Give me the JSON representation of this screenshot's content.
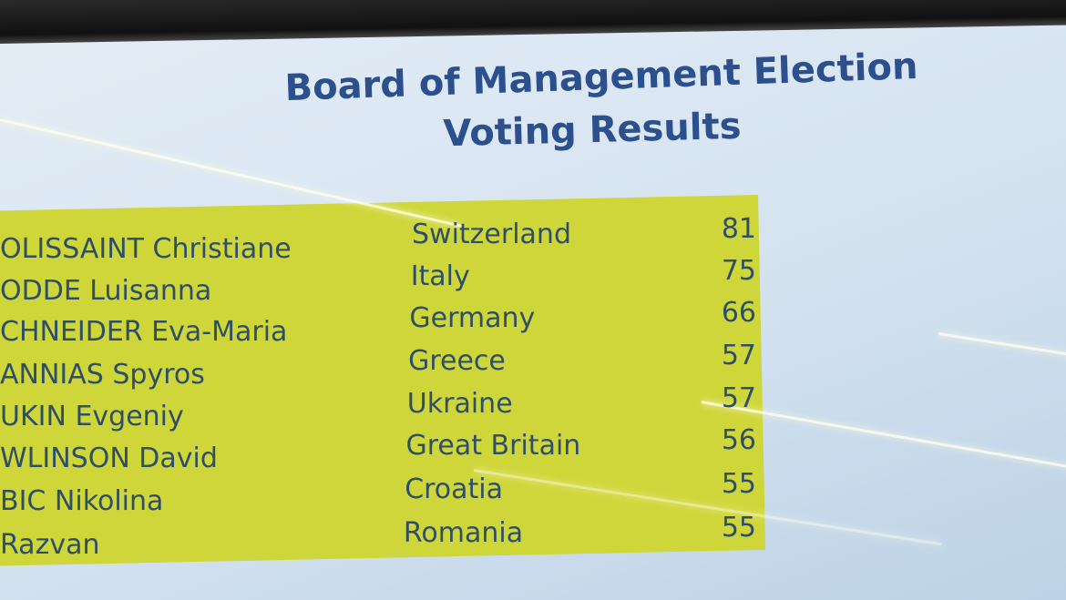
{
  "slide": {
    "title": [
      "Board of Management Election",
      "Voting Results"
    ],
    "table": {
      "rows": [
        [
          "OLISSAINT Christiane",
          "Switzerland",
          81
        ],
        [
          "ODDE Luisanna",
          "Italy",
          75
        ],
        [
          "CHNEIDER Eva-Maria",
          "Germany",
          66
        ],
        [
          "ANNIAS Spyros",
          "Greece",
          57
        ],
        [
          "UKIN Evgeniy",
          "Ukraine",
          57
        ],
        [
          "WLINSON David",
          "Great Britain",
          56
        ],
        [
          "BIC Nikolina",
          "Croatia",
          55
        ],
        [
          "Razvan",
          "Romania",
          55
        ]
      ]
    }
  }
}
